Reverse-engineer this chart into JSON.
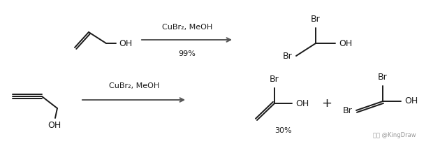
{
  "bg_color": "#ffffff",
  "fig_width": 6.4,
  "fig_height": 2.09,
  "dpi": 100,
  "text_color": "#1a1a1a",
  "arrow_color": "#555555",
  "line_color": "#1a1a1a",
  "font_size": 9,
  "small_font": 8,
  "watermark": "头条 @KingDraw",
  "reaction1_reagent": "CuBr₂, MeOH",
  "reaction1_yield": "99%",
  "reaction2_reagent": "CuBr₂, MeOH"
}
